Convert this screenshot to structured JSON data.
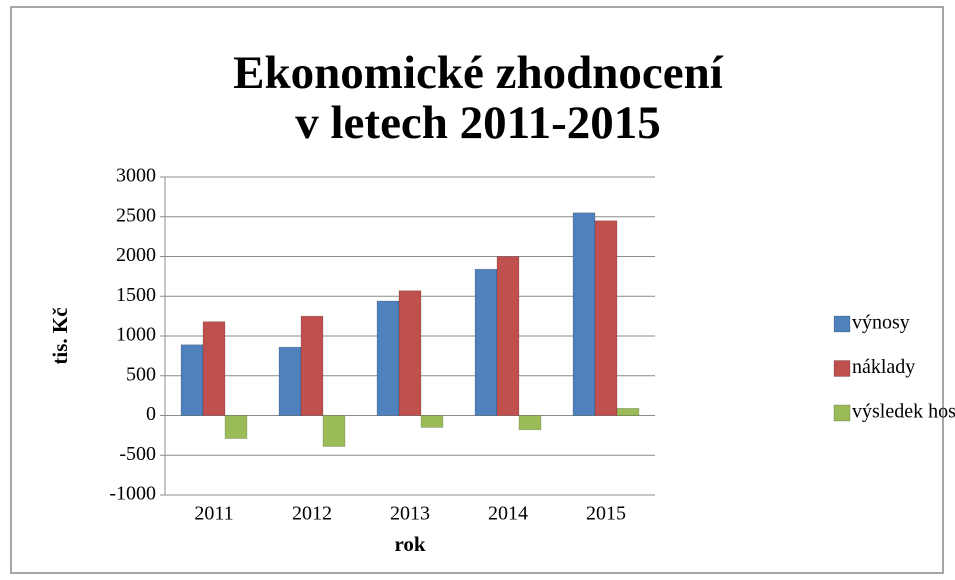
{
  "chart_data": {
    "type": "bar",
    "title": [
      "Ekonomické zhodnocení",
      "v letech 2011-2015"
    ],
    "x_label": "rok",
    "y_label": "tis. Kč",
    "categories": [
      "2011",
      "2012",
      "2013",
      "2014",
      "2015"
    ],
    "series": [
      {
        "name": "výnosy",
        "color": "#4f81bd",
        "values": [
          890,
          860,
          1440,
          1840,
          2550
        ]
      },
      {
        "name": "náklady",
        "color": "#c0504d",
        "values": [
          1180,
          1250,
          1570,
          2000,
          2450
        ]
      },
      {
        "name": "výsledek hospodaření",
        "color": "#9bbb59",
        "values": [
          -290,
          -390,
          -150,
          -180,
          90
        ]
      }
    ],
    "ylim": [
      -1000,
      3000
    ],
    "yticks": [
      -1000,
      -500,
      0,
      500,
      1000,
      1500,
      2000,
      2500,
      3000
    ],
    "grid": true,
    "legend": "right"
  }
}
